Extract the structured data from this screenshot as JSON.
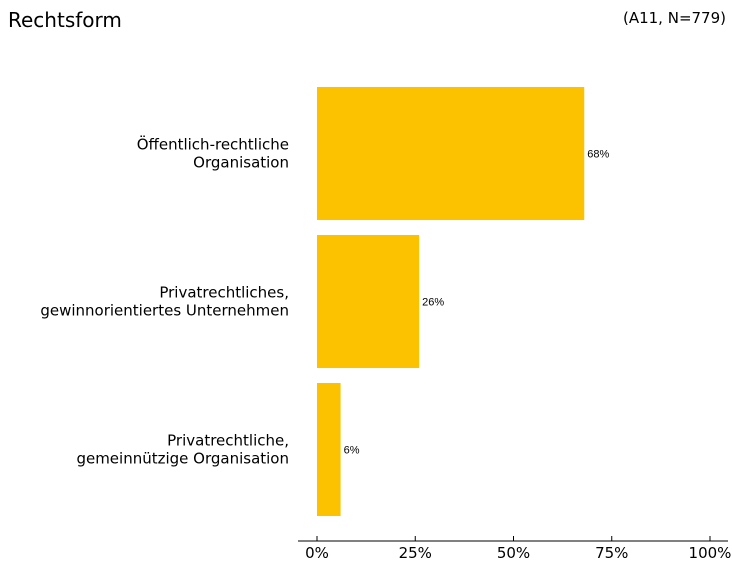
{
  "header": {
    "title": "Rechtsform",
    "note": "(A11, N=779)"
  },
  "chart_data": {
    "type": "bar",
    "orientation": "horizontal",
    "title": "Rechtsform",
    "xlabel": "",
    "ylabel": "",
    "categories": [
      [
        "Öffentlich-rechtliche",
        "Organisation"
      ],
      [
        "Privatrechtliches,",
        "gewinnorientiertes Unternehmen"
      ],
      [
        "Privatrechtliche,",
        "gemeinnützige Organisation"
      ]
    ],
    "values": [
      68,
      26,
      6
    ],
    "value_labels": [
      "68%",
      "26%",
      "6%"
    ],
    "xlim": [
      0,
      100
    ],
    "xticks": [
      0,
      25,
      50,
      75,
      100
    ],
    "xtick_labels": [
      "0%",
      "25%",
      "50%",
      "75%",
      "100%"
    ],
    "bar_color": "#FCC200",
    "grid": false
  }
}
